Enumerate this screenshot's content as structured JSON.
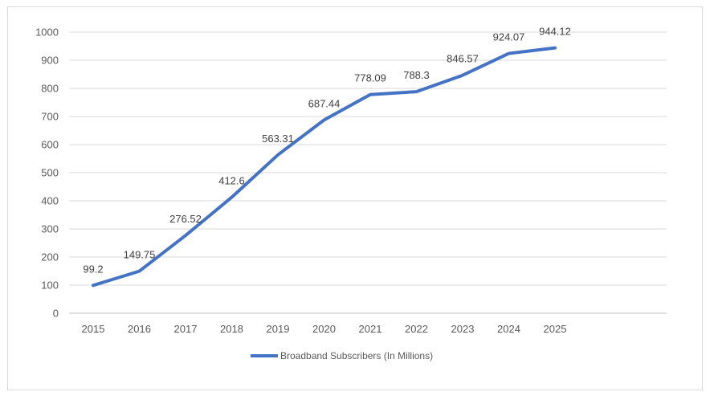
{
  "chart_data": {
    "type": "line",
    "title": "",
    "xlabel": "",
    "ylabel": "",
    "categories": [
      "2015",
      "2016",
      "2017",
      "2018",
      "2019",
      "2020",
      "2021",
      "2022",
      "2023",
      "2024",
      "2025"
    ],
    "series": [
      {
        "name": "Broadband Subscribers (In Millions)",
        "values": [
          99.2,
          149.75,
          276.52,
          412.6,
          563.31,
          687.44,
          778.09,
          788.3,
          846.57,
          924.07,
          944.12
        ],
        "color": "#4472c4"
      }
    ],
    "data_labels": [
      "99.2",
      "149.75",
      "276.52",
      "412.6",
      "563.31",
      "687.44",
      "778.09",
      "788.3",
      "846.57",
      "924.07",
      "944.12"
    ],
    "y_ticks": [
      "0",
      "100",
      "200",
      "300",
      "400",
      "500",
      "600",
      "700",
      "800",
      "900",
      "1000"
    ],
    "ylim": [
      0,
      1000
    ],
    "grid": true,
    "legend_position": "bottom"
  }
}
